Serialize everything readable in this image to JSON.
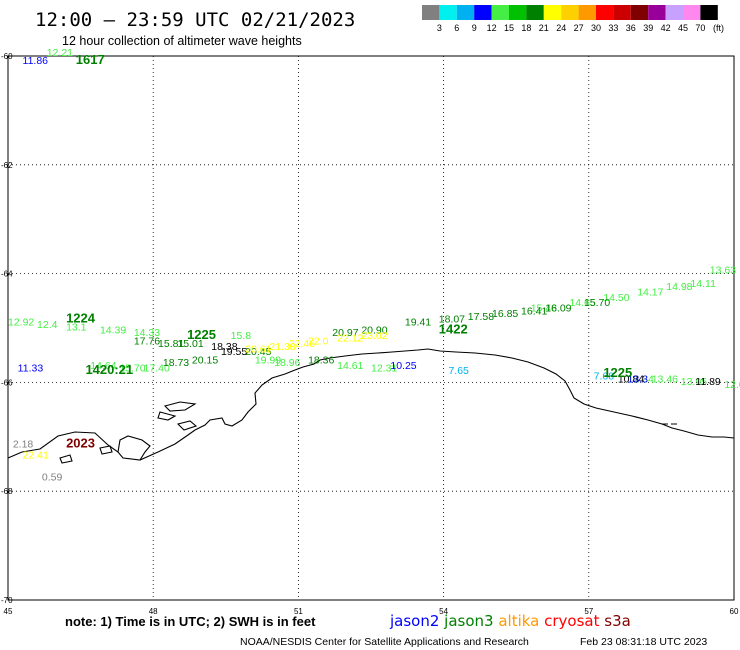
{
  "header": {
    "title": "12:00 – 23:59 UTC 02/21/2023",
    "subtitle": "12 hour collection of altimeter wave heights"
  },
  "legend": {
    "unit": "(ft)",
    "bins": [
      {
        "label": "3",
        "color": "#808080"
      },
      {
        "label": "6",
        "color": "#00f0f0"
      },
      {
        "label": "9",
        "color": "#00b0f0"
      },
      {
        "label": "12",
        "color": "#0000ff"
      },
      {
        "label": "15",
        "color": "#44ee44"
      },
      {
        "label": "18",
        "color": "#00c000"
      },
      {
        "label": "21",
        "color": "#008000"
      },
      {
        "label": "24",
        "color": "#ffff00"
      },
      {
        "label": "27",
        "color": "#ffd000"
      },
      {
        "label": "30",
        "color": "#ff9900"
      },
      {
        "label": "33",
        "color": "#ff0000"
      },
      {
        "label": "36",
        "color": "#cc0000"
      },
      {
        "label": "39",
        "color": "#800000"
      },
      {
        "label": "42",
        "color": "#990099"
      },
      {
        "label": "45",
        "color": "#c8a0ff"
      },
      {
        "label": "70",
        "color": "#ff88ee"
      },
      {
        "label": "",
        "color": "#000000"
      }
    ]
  },
  "map": {
    "lon_range": [
      45,
      60
    ],
    "lat_range": [
      -70,
      -60
    ],
    "x_ticks": [
      "45",
      "48",
      "51",
      "54",
      "57",
      "60"
    ],
    "y_ticks": [
      "-60",
      "-62",
      "-64",
      "-66",
      "-68",
      "-70"
    ],
    "grid": "dotted"
  },
  "chart_data": {
    "type": "scatter",
    "title": "12:00 – 23:59 UTC 02/21/2023",
    "subtitle": "12 hour collection of altimeter wave heights",
    "xlabel": "",
    "ylabel": "",
    "xlim": [
      45,
      60
    ],
    "ylim": [
      -70,
      -60
    ],
    "pass_times": [
      {
        "label": "1617",
        "color": "#008000",
        "lon": 46.4,
        "lat": -60.15
      },
      {
        "label": "1224",
        "color": "#008000",
        "lon": 46.2,
        "lat": -64.9
      },
      {
        "label": "1225",
        "color": "#008000",
        "lon": 48.7,
        "lat": -65.2
      },
      {
        "label": "1422",
        "color": "#008000",
        "lon": 53.9,
        "lat": -65.1
      },
      {
        "label": "1420:21",
        "color": "#008000",
        "lon": 46.6,
        "lat": -65.85
      },
      {
        "label": "1225",
        "color": "#008000",
        "lon": 57.3,
        "lat": -65.9
      },
      {
        "label": "2023",
        "color": "#800000",
        "lon": 46.2,
        "lat": -67.2
      }
    ],
    "series": [
      {
        "color": "#44ee44",
        "points": [
          {
            "lon": 45.8,
            "lat": -60.0,
            "v": "12.21"
          },
          {
            "lon": 45.0,
            "lat": -64.95,
            "v": "12.92"
          },
          {
            "lon": 45.6,
            "lat": -65.0,
            "v": "12.4"
          },
          {
            "lon": 46.2,
            "lat": -65.05,
            "v": "13.1"
          },
          {
            "lon": 46.9,
            "lat": -65.1,
            "v": "14.39"
          },
          {
            "lon": 47.6,
            "lat": -65.15,
            "v": "14.33"
          },
          {
            "lon": 49.6,
            "lat": -65.2,
            "v": "15.8"
          },
          {
            "lon": 55.8,
            "lat": -64.7,
            "v": "15.48"
          },
          {
            "lon": 56.6,
            "lat": -64.6,
            "v": "14.65"
          },
          {
            "lon": 57.3,
            "lat": -64.5,
            "v": "14.50"
          },
          {
            "lon": 58.0,
            "lat": -64.4,
            "v": "14.17"
          },
          {
            "lon": 58.6,
            "lat": -64.3,
            "v": "14.98"
          },
          {
            "lon": 59.1,
            "lat": -64.25,
            "v": "14.11"
          },
          {
            "lon": 59.5,
            "lat": -64.0,
            "v": "13.63"
          },
          {
            "lon": 46.7,
            "lat": -65.75,
            "v": "14.64"
          },
          {
            "lon": 47.3,
            "lat": -65.8,
            "v": "15.70"
          },
          {
            "lon": 47.8,
            "lat": -65.8,
            "v": "17.40"
          },
          {
            "lon": 50.1,
            "lat": -65.65,
            "v": "19.99"
          },
          {
            "lon": 50.5,
            "lat": -65.7,
            "v": "18.96"
          },
          {
            "lon": 51.8,
            "lat": -65.75,
            "v": "14.61"
          },
          {
            "lon": 52.5,
            "lat": -65.8,
            "v": "12.31"
          },
          {
            "lon": 57.8,
            "lat": -66.0,
            "v": "12.84"
          },
          {
            "lon": 58.3,
            "lat": -66.0,
            "v": "13.46"
          },
          {
            "lon": 58.9,
            "lat": -66.05,
            "v": "13.95"
          },
          {
            "lon": 59.8,
            "lat": -66.1,
            "v": "12.0"
          }
        ]
      },
      {
        "color": "#008000",
        "points": [
          {
            "lon": 47.6,
            "lat": -65.3,
            "v": "17.76"
          },
          {
            "lon": 48.1,
            "lat": -65.35,
            "v": "15.81"
          },
          {
            "lon": 48.5,
            "lat": -65.35,
            "v": "15.01"
          },
          {
            "lon": 48.2,
            "lat": -65.7,
            "v": "18.73"
          },
          {
            "lon": 48.8,
            "lat": -65.65,
            "v": "20.15"
          },
          {
            "lon": 49.9,
            "lat": -65.5,
            "v": "20.45"
          },
          {
            "lon": 51.7,
            "lat": -65.15,
            "v": "20.97"
          },
          {
            "lon": 52.3,
            "lat": -65.1,
            "v": "20.90"
          },
          {
            "lon": 53.2,
            "lat": -64.95,
            "v": "19.41"
          },
          {
            "lon": 53.9,
            "lat": -64.9,
            "v": "18.07"
          },
          {
            "lon": 54.5,
            "lat": -64.85,
            "v": "17.58"
          },
          {
            "lon": 55.0,
            "lat": -64.8,
            "v": "16.85"
          },
          {
            "lon": 55.6,
            "lat": -64.75,
            "v": "16.41"
          },
          {
            "lon": 56.1,
            "lat": -64.7,
            "v": "16.09"
          },
          {
            "lon": 56.9,
            "lat": -64.6,
            "v": "15.70"
          },
          {
            "lon": 51.2,
            "lat": -65.65,
            "v": "18.36"
          }
        ]
      },
      {
        "color": "#000000",
        "points": [
          {
            "lon": 49.2,
            "lat": -65.4,
            "v": "18.38"
          },
          {
            "lon": 49.4,
            "lat": -65.5,
            "v": "19.55"
          },
          {
            "lon": 57.6,
            "lat": -66.0,
            "v": "10.84"
          },
          {
            "lon": 59.2,
            "lat": -66.05,
            "v": "11.89"
          }
        ]
      },
      {
        "color": "#ffff00",
        "points": [
          {
            "lon": 49.9,
            "lat": -65.45,
            "v": "20.61"
          },
          {
            "lon": 50.4,
            "lat": -65.4,
            "v": "21.38"
          },
          {
            "lon": 50.8,
            "lat": -65.35,
            "v": "22.46"
          },
          {
            "lon": 51.2,
            "lat": -65.3,
            "v": "22.0"
          },
          {
            "lon": 51.8,
            "lat": -65.25,
            "v": "22.12"
          },
          {
            "lon": 52.3,
            "lat": -65.2,
            "v": "23.02"
          },
          {
            "lon": 45.3,
            "lat": -67.4,
            "v": "22.41"
          }
        ]
      },
      {
        "color": "#0000ff",
        "points": [
          {
            "lon": 45.3,
            "lat": -60.15,
            "v": "11.86"
          },
          {
            "lon": 45.2,
            "lat": -65.8,
            "v": "11.33"
          },
          {
            "lon": 52.9,
            "lat": -65.75,
            "v": "10.25"
          },
          {
            "lon": 57.8,
            "lat": -66.0,
            "v": "13.3"
          }
        ]
      },
      {
        "color": "#00b0f0",
        "points": [
          {
            "lon": 54.1,
            "lat": -65.85,
            "v": "7.65"
          },
          {
            "lon": 57.1,
            "lat": -65.95,
            "v": "7.68"
          }
        ]
      },
      {
        "color": "#808080",
        "points": [
          {
            "lon": 45.1,
            "lat": -67.2,
            "v": "2.18"
          },
          {
            "lon": 45.7,
            "lat": -67.8,
            "v": "0.59"
          }
        ]
      }
    ]
  },
  "footer": {
    "note": "note:  1) Time is in UTC; 2) SWH is in feet",
    "credit": "NOAA/NESDIS Center for Satellite Applications and Research",
    "timestamp": "Feb 23 08:31:18 UTC 2023",
    "satellites": [
      {
        "name": "jason2",
        "color": "#0000ff"
      },
      {
        "name": "jason3",
        "color": "#008000"
      },
      {
        "name": "altika",
        "color": "#ff9900"
      },
      {
        "name": "cryosat",
        "color": "#ff0000"
      },
      {
        "name": "s3a",
        "color": "#800000"
      }
    ]
  }
}
